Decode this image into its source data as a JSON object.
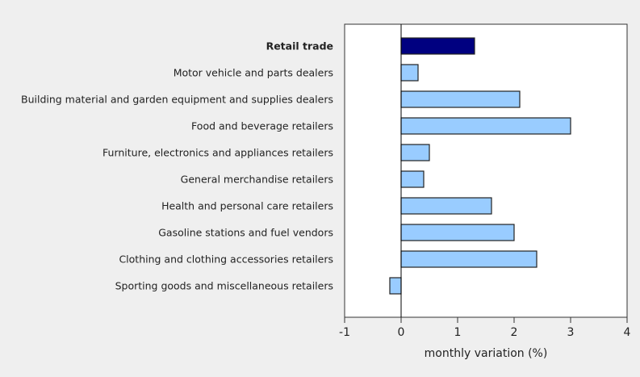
{
  "chart_data": {
    "type": "bar",
    "orientation": "horizontal",
    "title": "",
    "xlabel": "monthly variation (%)",
    "ylabel": "",
    "xlim": [
      -1,
      4
    ],
    "xticks": [
      -1,
      0,
      1,
      2,
      3,
      4
    ],
    "grid": false,
    "categories": [
      "Retail trade",
      "Motor vehicle and parts dealers",
      "Building material and garden equipment and supplies dealers",
      "Food and beverage retailers",
      "Furniture, electronics and appliances retailers",
      "General merchandise retailers",
      "Health and personal care retailers",
      "Gasoline stations and fuel vendors",
      "Clothing and clothing accessories retailers",
      "Sporting goods and miscellaneous retailers"
    ],
    "values": [
      1.3,
      0.3,
      2.1,
      3.0,
      0.5,
      0.4,
      1.6,
      2.0,
      2.4,
      -0.2
    ],
    "highlight_index": 0,
    "colors": {
      "highlight": "#000080",
      "bar": "#99ccff",
      "outline": "#222222"
    }
  }
}
